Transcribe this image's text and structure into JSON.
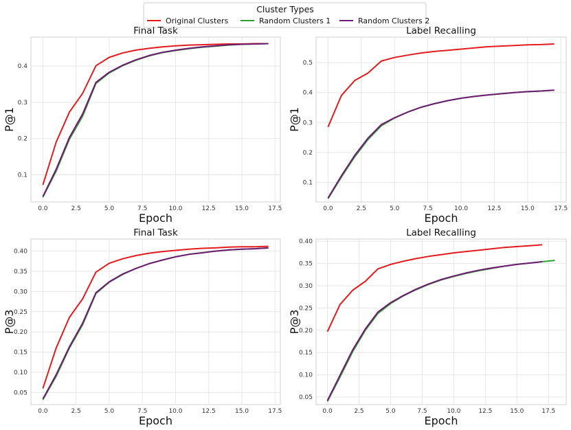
{
  "legend": {
    "title": "Cluster Types",
    "entries": [
      {
        "name": "Original Clusters",
        "color": "#e41a1c"
      },
      {
        "name": "Random Clusters 1",
        "color": "#2ca02c"
      },
      {
        "name": "Random Clusters 2",
        "color": "#6f1a73"
      }
    ]
  },
  "chart_data": [
    {
      "type": "line",
      "title": "Final Task",
      "xlabel": "Epoch",
      "ylabel": "P@1",
      "xlim": [
        -0.9,
        17.9
      ],
      "ylim": [
        0.025,
        0.48
      ],
      "xticks": [
        0.0,
        2.5,
        5.0,
        7.5,
        10.0,
        12.5,
        15.0,
        17.5
      ],
      "yticks": [
        0.1,
        0.2,
        0.3,
        0.4
      ],
      "ytick_decimals": 1,
      "series": [
        {
          "name": "Original Clusters",
          "x": [
            0,
            1,
            2,
            3,
            4,
            5,
            6,
            7,
            8,
            9,
            10,
            11,
            12,
            13,
            14,
            15,
            16,
            17
          ],
          "values": [
            0.072,
            0.19,
            0.273,
            0.325,
            0.401,
            0.424,
            0.436,
            0.444,
            0.449,
            0.453,
            0.456,
            0.458,
            0.459,
            0.46,
            0.461,
            0.461,
            0.462,
            0.462
          ]
        },
        {
          "name": "Random Clusters 1",
          "x": [
            0,
            1,
            2,
            3,
            4,
            5,
            6,
            7,
            8,
            9,
            10,
            11,
            12,
            13,
            14,
            15,
            16,
            17
          ],
          "values": [
            0.038,
            0.11,
            0.198,
            0.262,
            0.352,
            0.381,
            0.401,
            0.416,
            0.428,
            0.437,
            0.443,
            0.448,
            0.452,
            0.455,
            0.458,
            0.46,
            0.461,
            0.462
          ]
        },
        {
          "name": "Random Clusters 2",
          "x": [
            0,
            1,
            2,
            3,
            4,
            5,
            6,
            7,
            8,
            9,
            10,
            11,
            12,
            13,
            14,
            15,
            16,
            17
          ],
          "values": [
            0.04,
            0.115,
            0.203,
            0.268,
            0.355,
            0.383,
            0.402,
            0.417,
            0.429,
            0.438,
            0.444,
            0.449,
            0.453,
            0.456,
            0.459,
            0.46,
            0.461,
            0.462
          ]
        }
      ]
    },
    {
      "type": "line",
      "title": "Label Recalling",
      "xlabel": "Epoch",
      "ylabel": "P@1",
      "xlim": [
        -0.9,
        17.9
      ],
      "ylim": [
        0.035,
        0.585
      ],
      "xticks": [
        0.0,
        2.5,
        5.0,
        7.5,
        10.0,
        12.5,
        15.0,
        17.5
      ],
      "yticks": [
        0.1,
        0.2,
        0.3,
        0.4,
        0.5
      ],
      "ytick_decimals": 1,
      "series": [
        {
          "name": "Original Clusters",
          "x": [
            0,
            1,
            2,
            3,
            4,
            5,
            6,
            7,
            8,
            9,
            10,
            11,
            12,
            13,
            14,
            15,
            16,
            17
          ],
          "values": [
            0.285,
            0.39,
            0.44,
            0.465,
            0.505,
            0.517,
            0.525,
            0.532,
            0.537,
            0.541,
            0.545,
            0.549,
            0.553,
            0.555,
            0.557,
            0.559,
            0.56,
            0.562
          ]
        },
        {
          "name": "Random Clusters 1",
          "x": [
            0,
            1,
            2,
            3,
            4,
            5,
            6,
            7,
            8,
            9,
            10,
            11,
            12,
            13,
            14,
            15,
            16,
            17
          ],
          "values": [
            0.046,
            0.118,
            0.185,
            0.243,
            0.289,
            0.315,
            0.335,
            0.351,
            0.363,
            0.373,
            0.381,
            0.387,
            0.392,
            0.396,
            0.4,
            0.403,
            0.405,
            0.408
          ]
        },
        {
          "name": "Random Clusters 2",
          "x": [
            0,
            1,
            2,
            3,
            4,
            5,
            6,
            7,
            8,
            9,
            10,
            11,
            12,
            13,
            14,
            15,
            16,
            17
          ],
          "values": [
            0.048,
            0.122,
            0.19,
            0.248,
            0.293,
            0.316,
            0.335,
            0.351,
            0.363,
            0.373,
            0.381,
            0.387,
            0.392,
            0.396,
            0.4,
            0.403,
            0.405,
            0.408
          ]
        }
      ]
    },
    {
      "type": "line",
      "title": "Final Task",
      "xlabel": "Epoch",
      "ylabel": "P@3",
      "xlim": [
        -0.9,
        17.9
      ],
      "ylim": [
        0.02,
        0.43
      ],
      "xticks": [
        0.0,
        2.5,
        5.0,
        7.5,
        10.0,
        12.5,
        15.0,
        17.5
      ],
      "yticks": [
        0.05,
        0.1,
        0.15,
        0.2,
        0.25,
        0.3,
        0.35,
        0.4
      ],
      "ytick_decimals": 2,
      "series": [
        {
          "name": "Original Clusters",
          "x": [
            0,
            1,
            2,
            3,
            4,
            5,
            6,
            7,
            8,
            9,
            10,
            11,
            12,
            13,
            14,
            15,
            16,
            17
          ],
          "values": [
            0.06,
            0.16,
            0.236,
            0.282,
            0.348,
            0.37,
            0.381,
            0.389,
            0.395,
            0.399,
            0.402,
            0.405,
            0.407,
            0.408,
            0.41,
            0.411,
            0.411,
            0.412
          ]
        },
        {
          "name": "Random Clusters 1",
          "x": [
            0,
            1,
            2,
            3,
            4,
            5,
            6,
            7,
            8,
            9,
            10,
            11,
            12,
            13,
            14,
            15,
            16,
            17
          ],
          "values": [
            0.032,
            0.09,
            0.16,
            0.218,
            0.295,
            0.323,
            0.342,
            0.357,
            0.369,
            0.378,
            0.386,
            0.392,
            0.396,
            0.4,
            0.403,
            0.405,
            0.406,
            0.408
          ]
        },
        {
          "name": "Random Clusters 2",
          "x": [
            0,
            1,
            2,
            3,
            4,
            5,
            6,
            7,
            8,
            9,
            10,
            11,
            12,
            13,
            14,
            15,
            16,
            17
          ],
          "values": [
            0.034,
            0.094,
            0.163,
            0.222,
            0.297,
            0.324,
            0.343,
            0.357,
            0.369,
            0.378,
            0.386,
            0.392,
            0.396,
            0.4,
            0.403,
            0.405,
            0.406,
            0.408
          ]
        }
      ]
    },
    {
      "type": "line",
      "title": "Label Recalling",
      "xlabel": "Epoch",
      "ylabel": "P@3",
      "xlim": [
        -0.9,
        18.9
      ],
      "ylim": [
        0.033,
        0.405
      ],
      "xticks": [
        0.0,
        2.5,
        5.0,
        7.5,
        10.0,
        12.5,
        15.0,
        17.5
      ],
      "yticks": [
        0.05,
        0.1,
        0.15,
        0.2,
        0.25,
        0.3,
        0.35,
        0.4
      ],
      "ytick_decimals": 2,
      "series": [
        {
          "name": "Original Clusters",
          "x": [
            0,
            1,
            2,
            3,
            4,
            5,
            6,
            7,
            8,
            9,
            10,
            11,
            12,
            13,
            14,
            15,
            16,
            17
          ],
          "values": [
            0.197,
            0.258,
            0.29,
            0.31,
            0.338,
            0.348,
            0.355,
            0.361,
            0.366,
            0.37,
            0.374,
            0.377,
            0.38,
            0.383,
            0.386,
            0.388,
            0.39,
            0.392
          ]
        },
        {
          "name": "Random Clusters 1",
          "x": [
            0,
            1,
            2,
            3,
            4,
            5,
            6,
            7,
            8,
            9,
            10,
            11,
            12,
            13,
            14,
            15,
            16,
            17,
            18
          ],
          "values": [
            0.04,
            0.095,
            0.152,
            0.2,
            0.238,
            0.26,
            0.277,
            0.291,
            0.303,
            0.313,
            0.321,
            0.328,
            0.334,
            0.339,
            0.344,
            0.348,
            0.351,
            0.354,
            0.357
          ]
        },
        {
          "name": "Random Clusters 2",
          "x": [
            0,
            1,
            2,
            3,
            4,
            5,
            6,
            7,
            8,
            9,
            10,
            11,
            12,
            13,
            14,
            15,
            16,
            17
          ],
          "values": [
            0.042,
            0.099,
            0.156,
            0.203,
            0.241,
            0.262,
            0.278,
            0.292,
            0.304,
            0.314,
            0.322,
            0.329,
            0.335,
            0.34,
            0.344,
            0.348,
            0.351,
            0.354
          ]
        }
      ]
    }
  ]
}
